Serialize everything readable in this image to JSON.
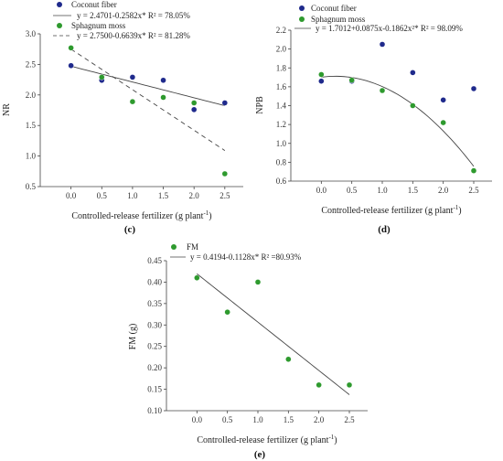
{
  "chart_data": [
    {
      "id": "c",
      "type": "scatter",
      "panel_label": "(c)",
      "title": "",
      "xlabel": "Controlled-release fertilizer (g plant",
      "xlabel_sup": "-1",
      "xlabel_end": ")",
      "ylabel": "NR",
      "xlim": [
        -0.5,
        2.8
      ],
      "ylim": [
        0.5,
        3.0
      ],
      "xticks": [
        0.0,
        0.5,
        1.0,
        1.5,
        2.0,
        2.5
      ],
      "xtick_labels": [
        "0.0",
        "0.5",
        "1.0",
        "1.5",
        "2.0",
        "2.5"
      ],
      "yticks": [
        0.5,
        1.0,
        1.5,
        2.0,
        2.5,
        3.0
      ],
      "ytick_labels": [
        "0.5",
        "1.0",
        "1.5",
        "2.0",
        "2.5",
        "3.0"
      ],
      "legend_position": "top-left",
      "series": [
        {
          "name": "Coconut fiber",
          "color": "#1f2a8c",
          "x": [
            0.0,
            0.5,
            1.0,
            1.5,
            2.0,
            2.5
          ],
          "y": [
            2.48,
            2.24,
            2.29,
            2.24,
            1.76,
            1.87
          ],
          "fit": {
            "label": "y = 2.4701-0.2582x*  R² = 78.05%",
            "style": "solid",
            "coef": [
              2.4701,
              -0.2582
            ]
          }
        },
        {
          "name": "Sphagnum moss",
          "color": "#2e9a2e",
          "x": [
            0.0,
            0.5,
            1.0,
            1.5,
            2.0,
            2.5
          ],
          "y": [
            2.77,
            2.29,
            1.89,
            1.96,
            1.87,
            0.71
          ],
          "fit": {
            "label": "y = 2.7500-0.6639x*  R² = 81.28%",
            "style": "dashed",
            "coef": [
              2.75,
              -0.6639
            ]
          }
        }
      ]
    },
    {
      "id": "d",
      "type": "scatter",
      "panel_label": "(d)",
      "title": "",
      "xlabel": "Controlled-release fertilizer (g plant",
      "xlabel_sup": "-1",
      "xlabel_end": ")",
      "ylabel": "NPB",
      "xlim": [
        -0.5,
        2.8
      ],
      "ylim": [
        0.6,
        2.2
      ],
      "xticks": [
        0.0,
        0.5,
        1.0,
        1.5,
        2.0,
        2.5
      ],
      "xtick_labels": [
        "0.0",
        "0.5",
        "1.0",
        "1.5",
        "2.0",
        "2.5"
      ],
      "yticks": [
        0.6,
        0.8,
        1.0,
        1.2,
        1.4,
        1.6,
        1.8,
        2.0,
        2.2
      ],
      "ytick_labels": [
        "0.6",
        "0.8",
        "1.0",
        "1.2",
        "1.4",
        "1.6",
        "1.8",
        "2.0",
        "2.2"
      ],
      "legend_position": "top-left",
      "series": [
        {
          "name": "Coconut fiber",
          "color": "#1f2a8c",
          "x": [
            0.0,
            0.5,
            1.0,
            1.5,
            2.0,
            2.5
          ],
          "y": [
            1.66,
            1.66,
            2.05,
            1.75,
            1.46,
            1.58
          ]
        },
        {
          "name": "Sphagnum moss",
          "color": "#2e9a2e",
          "x": [
            0.0,
            0.5,
            1.0,
            1.5,
            2.0,
            2.5
          ],
          "y": [
            1.73,
            1.67,
            1.56,
            1.4,
            1.22,
            0.71
          ],
          "fit": {
            "label": "y = 1.7012+0.0875x-0.1862x²*  R² = 98.09%",
            "style": "solid",
            "coef": [
              1.7012,
              0.0875,
              -0.1862
            ]
          }
        }
      ]
    },
    {
      "id": "e",
      "type": "scatter",
      "panel_label": "(e)",
      "title": "",
      "xlabel": "Controlled-release fertilizer (g plant",
      "xlabel_sup": "-1",
      "xlabel_end": ")",
      "ylabel": "FM (g)",
      "xlim": [
        -0.5,
        2.8
      ],
      "ylim": [
        0.1,
        0.45
      ],
      "xticks": [
        0.0,
        0.5,
        1.0,
        1.5,
        2.0,
        2.5
      ],
      "xtick_labels": [
        "0.0",
        "0.5",
        "1.0",
        "1.5",
        "2.0",
        "2.5"
      ],
      "yticks": [
        0.1,
        0.15,
        0.2,
        0.25,
        0.3,
        0.35,
        0.4,
        0.45
      ],
      "ytick_labels": [
        "0.10",
        "0.15",
        "0.20",
        "0.25",
        "0.30",
        "0.35",
        "0.40",
        "0.45"
      ],
      "legend_position": "top-left",
      "series": [
        {
          "name": "FM",
          "color": "#2e9a2e",
          "x": [
            0.0,
            0.5,
            1.0,
            1.5,
            2.0,
            2.5
          ],
          "y": [
            0.41,
            0.33,
            0.4,
            0.22,
            0.16,
            0.16
          ],
          "fit": {
            "label": "y = 0.4194-0.1128x*  R² =80.93%",
            "style": "solid",
            "coef": [
              0.4194,
              -0.1128
            ]
          }
        }
      ]
    }
  ]
}
